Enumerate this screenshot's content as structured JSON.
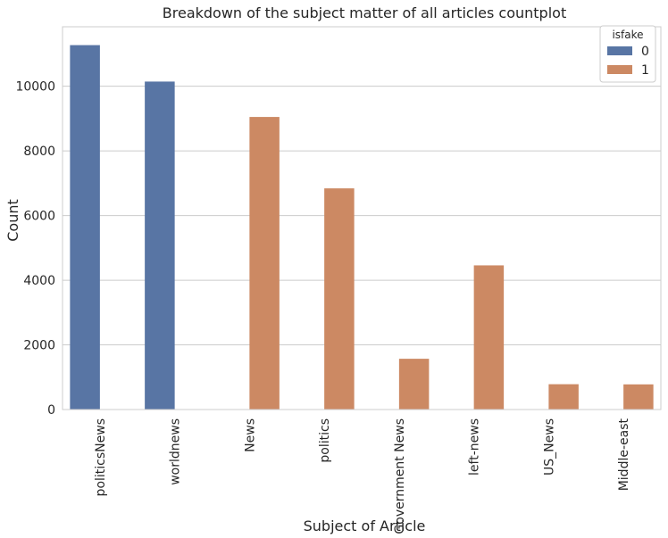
{
  "chart_data": {
    "type": "bar",
    "title": "Breakdown of the subject matter of all articles countplot",
    "xlabel": "Subject of Article",
    "ylabel": "Count",
    "categories": [
      "politicsNews",
      "worldnews",
      "News",
      "politics",
      "Government News",
      "left-news",
      "US_News",
      "Middle-east"
    ],
    "series": [
      {
        "name": "0",
        "color": "#5875a4",
        "values": [
          11272,
          10145,
          0,
          0,
          0,
          0,
          0,
          0
        ]
      },
      {
        "name": "1",
        "color": "#cc8963",
        "values": [
          0,
          0,
          9050,
          6841,
          1570,
          4459,
          783,
          778
        ]
      }
    ],
    "ylim": [
      0,
      11840
    ],
    "yticks": [
      0,
      2000,
      4000,
      6000,
      8000,
      10000
    ],
    "grid": true,
    "legend": {
      "title": "isfake",
      "position": "top-right"
    }
  }
}
